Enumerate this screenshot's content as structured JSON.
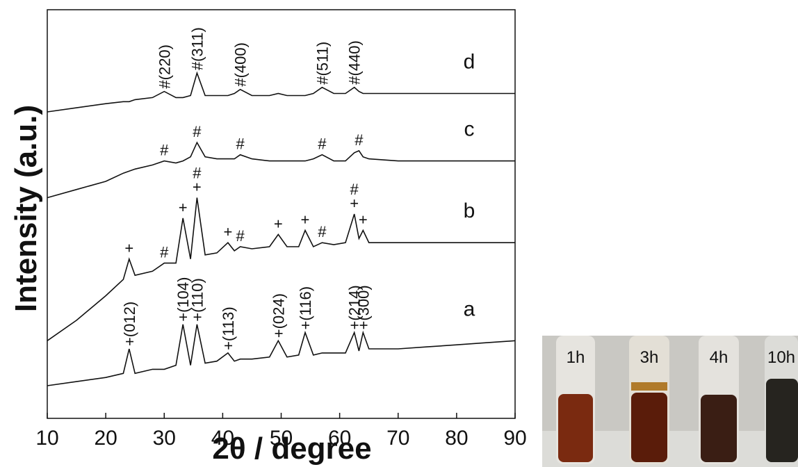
{
  "chart_data": {
    "type": "line",
    "xlabel": "2θ / degree",
    "ylabel": "Intensity (a.u.)",
    "xlim": [
      10,
      90
    ],
    "xticks": [
      10,
      20,
      30,
      40,
      50,
      60,
      70,
      80,
      90
    ],
    "ylim": [
      0,
      100
    ],
    "x": [
      10,
      15,
      20,
      23,
      24,
      25,
      28,
      30,
      32,
      33.2,
      34.5,
      35.6,
      37,
      39,
      40.9,
      42,
      43,
      45,
      48,
      49.5,
      51,
      53,
      54.1,
      55.5,
      57,
      59,
      61,
      62.5,
      63.3,
      64,
      65,
      70,
      75,
      80,
      85,
      90
    ],
    "series": [
      {
        "name": "a",
        "color": "#111111",
        "values": [
          8,
          9,
          10,
          11,
          17,
          11,
          12,
          12,
          13,
          23,
          13,
          23,
          13.5,
          14,
          16,
          14,
          14.5,
          14.5,
          15,
          19,
          15,
          15.5,
          21,
          15.5,
          16,
          16,
          16,
          21,
          16.5,
          21,
          17,
          17,
          17.5,
          18,
          18.5,
          19
        ]
      },
      {
        "name": "b",
        "color": "#111111",
        "values": [
          19,
          24,
          30,
          34,
          39,
          35,
          36,
          38,
          38,
          49,
          39,
          54,
          40,
          40.5,
          43,
          41,
          42,
          41.5,
          42,
          45,
          42,
          42,
          46,
          42,
          43,
          42.5,
          43,
          50,
          44,
          46,
          43,
          43,
          43,
          43,
          43,
          43
        ]
      },
      {
        "name": "c",
        "color": "#111111",
        "values": [
          54,
          56,
          58,
          60,
          60.5,
          61,
          62,
          63,
          62.5,
          63,
          64,
          67.5,
          64,
          63.5,
          63.5,
          63.5,
          64.5,
          63.5,
          63,
          63,
          63,
          63,
          63,
          63.5,
          64.5,
          63,
          63,
          65,
          65.5,
          64,
          63.5,
          63,
          63,
          63,
          63,
          63
        ]
      },
      {
        "name": "d",
        "color": "#111111",
        "values": [
          75,
          76,
          77,
          77.5,
          77.5,
          78,
          78.5,
          80,
          78.5,
          78.5,
          79,
          84.5,
          79,
          79,
          79,
          79.5,
          80.5,
          79,
          79,
          79.5,
          79,
          79,
          79,
          79.5,
          81,
          79.5,
          79.5,
          81,
          80,
          79.5,
          79.5,
          79.5,
          79.5,
          79.5,
          79.5,
          79.5
        ]
      }
    ],
    "annotations": [
      {
        "text": "+(012)",
        "x": 24,
        "series": "a"
      },
      {
        "text": "+(104)",
        "x": 33.2,
        "series": "a"
      },
      {
        "text": "+(110)",
        "x": 35.6,
        "series": "a"
      },
      {
        "text": "+(113)",
        "x": 40.9,
        "series": "a"
      },
      {
        "text": "+(024)",
        "x": 49.5,
        "series": "a"
      },
      {
        "text": "+(116)",
        "x": 54.1,
        "series": "a"
      },
      {
        "text": "+(214)",
        "x": 62.5,
        "series": "a"
      },
      {
        "text": "+(300)",
        "x": 64,
        "series": "a"
      },
      {
        "text": "+",
        "x": 24,
        "series": "b"
      },
      {
        "text": "#",
        "x": 30,
        "series": "b"
      },
      {
        "text": "+",
        "x": 33.2,
        "series": "b"
      },
      {
        "text": "+",
        "x": 35.6,
        "series": "b"
      },
      {
        "text": "#",
        "x": 35.6,
        "series": "b"
      },
      {
        "text": "+",
        "x": 40.9,
        "series": "b"
      },
      {
        "text": "#",
        "x": 43,
        "series": "b"
      },
      {
        "text": "+",
        "x": 49.5,
        "series": "b"
      },
      {
        "text": "+",
        "x": 54.1,
        "series": "b"
      },
      {
        "text": "#",
        "x": 57,
        "series": "b"
      },
      {
        "text": "+",
        "x": 62.5,
        "series": "b"
      },
      {
        "text": "#",
        "x": 62.5,
        "series": "b"
      },
      {
        "text": "+",
        "x": 64,
        "series": "b"
      },
      {
        "text": "#",
        "x": 30,
        "series": "c"
      },
      {
        "text": "#",
        "x": 35.6,
        "series": "c"
      },
      {
        "text": "#",
        "x": 43,
        "series": "c"
      },
      {
        "text": "#",
        "x": 57,
        "series": "c"
      },
      {
        "text": "#",
        "x": 63.3,
        "series": "c"
      },
      {
        "text": "#(220)",
        "x": 30,
        "series": "d"
      },
      {
        "text": "#(311)",
        "x": 35.6,
        "series": "d"
      },
      {
        "text": "#(400)",
        "x": 43,
        "series": "d"
      },
      {
        "text": "#(511)",
        "x": 57,
        "series": "d"
      },
      {
        "text": "#(440)",
        "x": 62.5,
        "series": "d"
      }
    ]
  },
  "photo": {
    "labels": [
      "1h",
      "3h",
      "4h",
      "10h"
    ]
  }
}
